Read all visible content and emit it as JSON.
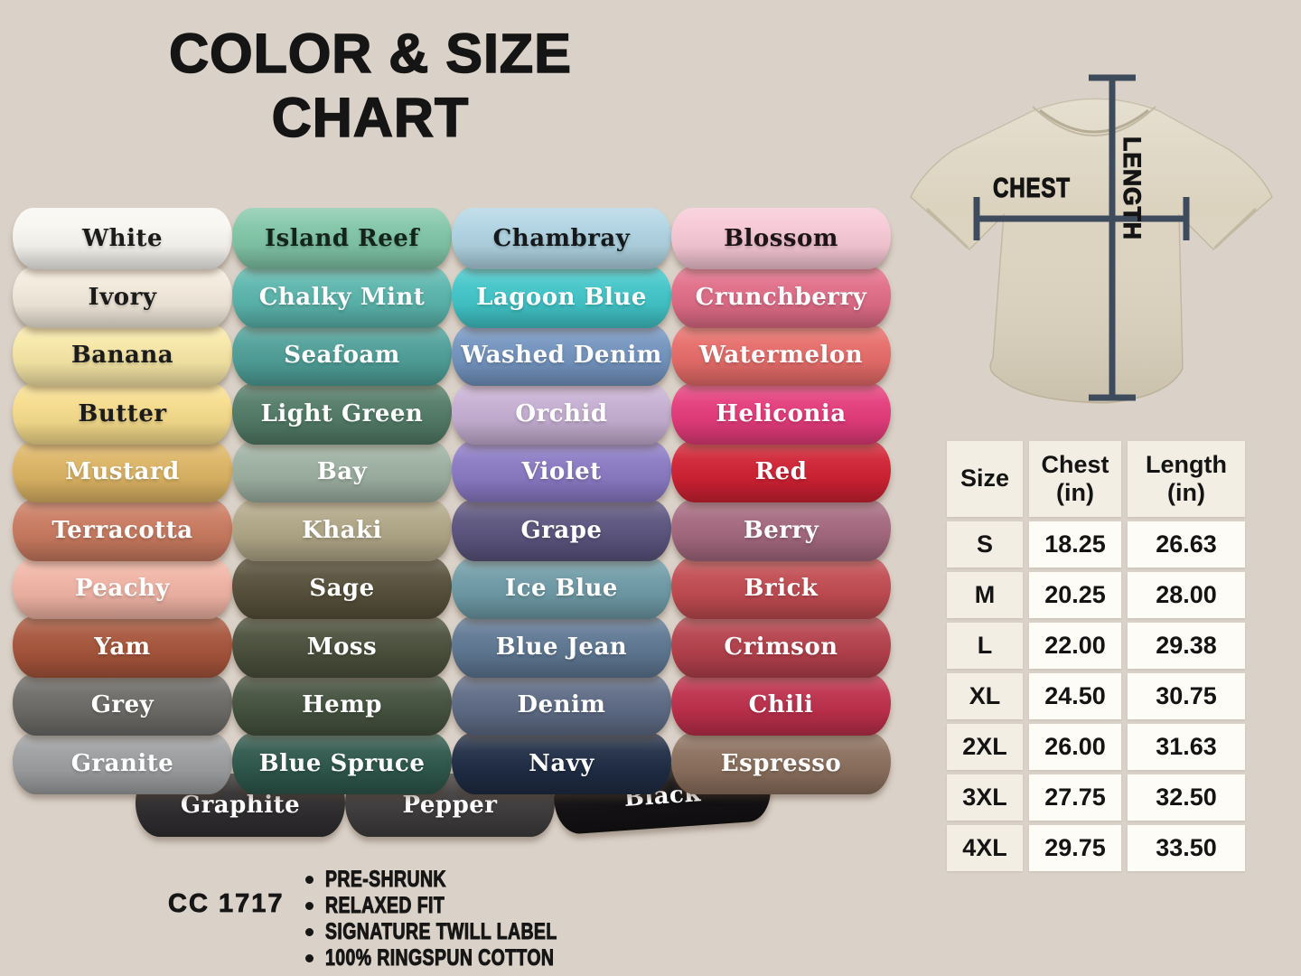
{
  "canvas_background": "#dad1c8",
  "title": {
    "line1": "COLOR & SIZE",
    "line2": "CHART"
  },
  "colors": {
    "columns": [
      [
        {
          "name": "White",
          "hex": "#f8f6f1",
          "text": "#1b1b1b"
        },
        {
          "name": "Ivory",
          "hex": "#f2e9db",
          "text": "#1b1b1b"
        },
        {
          "name": "Banana",
          "hex": "#f7e7a6",
          "text": "#1b1b1b"
        },
        {
          "name": "Butter",
          "hex": "#f6dc8c",
          "text": "#1b1b1b"
        },
        {
          "name": "Mustard",
          "hex": "#dcb464",
          "text": "#ffffff"
        },
        {
          "name": "Terracotta",
          "hex": "#c97a5f",
          "text": "#ffffff"
        },
        {
          "name": "Peachy",
          "hex": "#f0b4a5",
          "text": "#ffffff"
        },
        {
          "name": "Yam",
          "hex": "#a7553b",
          "text": "#ffffff"
        },
        {
          "name": "Grey",
          "hex": "#6c6b68",
          "text": "#ffffff"
        },
        {
          "name": "Granite",
          "hex": "#9c9ea0",
          "text": "#ffffff"
        }
      ],
      [
        {
          "name": "Island Reef",
          "hex": "#80c5a6",
          "text": "#13241c"
        },
        {
          "name": "Chalky Mint",
          "hex": "#5ab5ac",
          "text": "#ffffff"
        },
        {
          "name": "Seafoam",
          "hex": "#4f9f98",
          "text": "#ffffff"
        },
        {
          "name": "Light Green",
          "hex": "#527b67",
          "text": "#ffffff"
        },
        {
          "name": "Bay",
          "hex": "#9db0a1",
          "text": "#ffffff"
        },
        {
          "name": "Khaki",
          "hex": "#b0a687",
          "text": "#ffffff"
        },
        {
          "name": "Sage",
          "hex": "#564f3a",
          "text": "#ffffff"
        },
        {
          "name": "Moss",
          "hex": "#4a503c",
          "text": "#ffffff"
        },
        {
          "name": "Hemp",
          "hex": "#45523f",
          "text": "#ffffff"
        },
        {
          "name": "Blue Spruce",
          "hex": "#2e574b",
          "text": "#ffffff"
        }
      ],
      [
        {
          "name": "Chambray",
          "hex": "#afd3e2",
          "text": "#15191c"
        },
        {
          "name": "Lagoon Blue",
          "hex": "#41c5c8",
          "text": "#ffffff"
        },
        {
          "name": "Washed Denim",
          "hex": "#7394bf",
          "text": "#ffffff"
        },
        {
          "name": "Orchid",
          "hex": "#c6afd3",
          "text": "#ffffff"
        },
        {
          "name": "Violet",
          "hex": "#8a7ac4",
          "text": "#ffffff"
        },
        {
          "name": "Grape",
          "hex": "#5b547e",
          "text": "#ffffff"
        },
        {
          "name": "Ice Blue",
          "hex": "#6e9aa6",
          "text": "#ffffff"
        },
        {
          "name": "Blue Jean",
          "hex": "#5e7792",
          "text": "#ffffff"
        },
        {
          "name": "Denim",
          "hex": "#5e6b85",
          "text": "#ffffff"
        },
        {
          "name": "Navy",
          "hex": "#1f2c44",
          "text": "#ffffff"
        }
      ],
      [
        {
          "name": "Blossom",
          "hex": "#f6c7d5",
          "text": "#1d1418"
        },
        {
          "name": "Crunchberry",
          "hex": "#e06c87",
          "text": "#ffffff"
        },
        {
          "name": "Watermelon",
          "hex": "#e66c69",
          "text": "#ffffff"
        },
        {
          "name": "Heliconia",
          "hex": "#e43b7a",
          "text": "#ffffff"
        },
        {
          "name": "Red",
          "hex": "#cf2133",
          "text": "#ffffff"
        },
        {
          "name": "Berry",
          "hex": "#a4687e",
          "text": "#ffffff"
        },
        {
          "name": "Brick",
          "hex": "#c04b51",
          "text": "#ffffff"
        },
        {
          "name": "Crimson",
          "hex": "#b4404b",
          "text": "#ffffff"
        },
        {
          "name": "Chili",
          "hex": "#bd2f4b",
          "text": "#ffffff"
        },
        {
          "name": "Espresso",
          "hex": "#8b6f5d",
          "text": "#ffffff"
        }
      ]
    ],
    "bottom_row": [
      {
        "name": "Graphite",
        "hex": "#302e30",
        "text": "#ffffff"
      },
      {
        "name": "Pepper",
        "hex": "#403d3e",
        "text": "#ffffff"
      },
      {
        "name": "Black",
        "hex": "#141214",
        "text": "#ffffff"
      }
    ]
  },
  "diagram": {
    "chest_label": "CHEST",
    "length_label": "LENGTH",
    "shirt_color": "#dcd3bf",
    "line_color": "#3d4b5c"
  },
  "size_table": {
    "headers": [
      {
        "line1": "Size",
        "line2": ""
      },
      {
        "line1": "Chest",
        "line2": "(in)"
      },
      {
        "line1": "Length",
        "line2": "(in)"
      }
    ],
    "rows": [
      [
        "S",
        "18.25",
        "26.63"
      ],
      [
        "M",
        "20.25",
        "28.00"
      ],
      [
        "L",
        "22.00",
        "29.38"
      ],
      [
        "XL",
        "24.50",
        "30.75"
      ],
      [
        "2XL",
        "26.00",
        "31.63"
      ],
      [
        "3XL",
        "27.75",
        "32.50"
      ],
      [
        "4XL",
        "29.75",
        "33.50"
      ]
    ]
  },
  "product": {
    "code": "CC 1717",
    "features": [
      "PRE-SHRUNK",
      "RELAXED FIT",
      "SIGNATURE TWILL LABEL",
      "100% RINGSPUN COTTON"
    ]
  },
  "chart_data": {
    "type": "table",
    "title": "COLOR & SIZE CHART",
    "columns": [
      "Size",
      "Chest (in)",
      "Length (in)"
    ],
    "rows": [
      [
        "S",
        18.25,
        26.63
      ],
      [
        "M",
        20.25,
        28.0
      ],
      [
        "L",
        22.0,
        29.38
      ],
      [
        "XL",
        24.5,
        30.75
      ],
      [
        "2XL",
        26.0,
        31.63
      ],
      [
        "3XL",
        27.75,
        32.5
      ],
      [
        "4XL",
        29.75,
        33.5
      ]
    ],
    "color_names": [
      "White",
      "Ivory",
      "Banana",
      "Butter",
      "Mustard",
      "Terracotta",
      "Peachy",
      "Yam",
      "Grey",
      "Granite",
      "Island Reef",
      "Chalky Mint",
      "Seafoam",
      "Light Green",
      "Bay",
      "Khaki",
      "Sage",
      "Moss",
      "Hemp",
      "Blue Spruce",
      "Chambray",
      "Lagoon Blue",
      "Washed Denim",
      "Orchid",
      "Violet",
      "Grape",
      "Ice Blue",
      "Blue Jean",
      "Denim",
      "Navy",
      "Blossom",
      "Crunchberry",
      "Watermelon",
      "Heliconia",
      "Red",
      "Berry",
      "Brick",
      "Crimson",
      "Chili",
      "Espresso",
      "Graphite",
      "Pepper",
      "Black"
    ]
  }
}
